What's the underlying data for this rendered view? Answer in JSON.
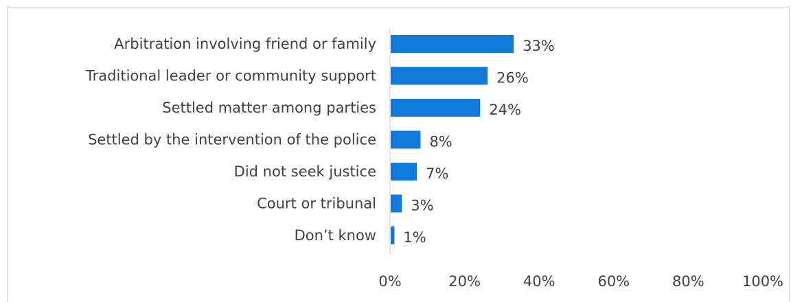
{
  "chart_data": {
    "type": "bar",
    "orientation": "horizontal",
    "categories": [
      "Arbitration involving friend or family",
      "Traditional leader or community support",
      "Settled matter among parties",
      "Settled by the intervention of the police",
      "Did not seek justice",
      "Court or tribunal",
      "Don’t know"
    ],
    "values": [
      33,
      26,
      24,
      8,
      7,
      3,
      1
    ],
    "value_labels": [
      "33%",
      "26%",
      "24%",
      "8%",
      "7%",
      "3%",
      "1%"
    ],
    "xlim": [
      0,
      100
    ],
    "ticks": [
      0,
      20,
      40,
      60,
      80,
      100
    ],
    "tick_labels": [
      "0%",
      "20%",
      "40%",
      "60%",
      "80%",
      "100%"
    ],
    "bar_color": "#0f7ad8",
    "axis_color": "#d9d9d9",
    "grid": false,
    "legend": "none"
  }
}
